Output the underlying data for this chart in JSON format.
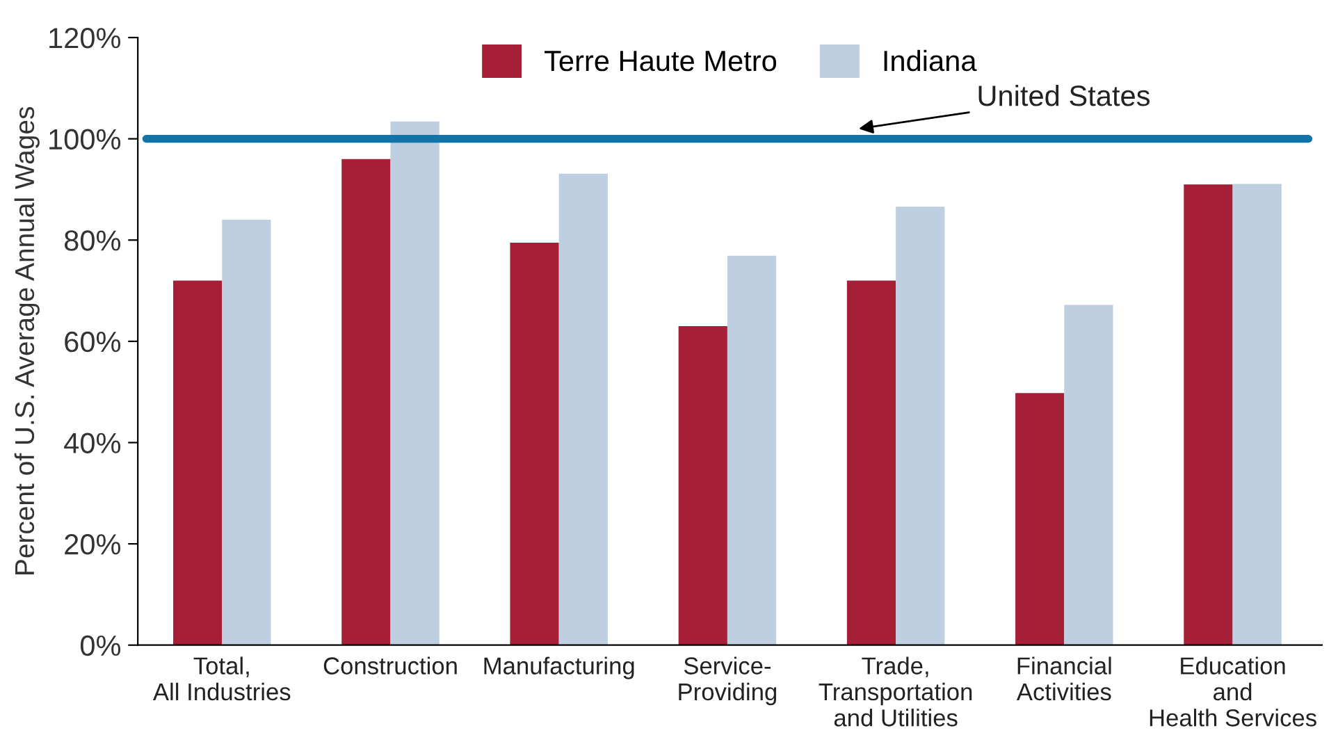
{
  "chart_data": {
    "type": "bar",
    "ylabel": "Percent of U.S. Average Annual Wages",
    "categories": [
      "Total,\nAll Industries",
      "Construction",
      "Manufacturing",
      "Service-\nProviding",
      "Trade,\nTransportation\nand Utilities",
      "Financial\nActivities",
      "Education\nand\nHealth Services"
    ],
    "series": [
      {
        "name": "Terre Haute Metro",
        "color": "#a51f36",
        "values": [
          72.0,
          96.0,
          79.5,
          63.0,
          72.0,
          49.8,
          91.0
        ]
      },
      {
        "name": "Indiana",
        "color": "#bdcfe1",
        "values": [
          84.0,
          103.4,
          93.1,
          76.9,
          86.6,
          67.2,
          91.1
        ]
      }
    ],
    "ylim": [
      0,
      120
    ],
    "yticks": [
      {
        "value": 0,
        "label": "0%"
      },
      {
        "value": 20,
        "label": "20%"
      },
      {
        "value": 40,
        "label": "40%"
      },
      {
        "value": 60,
        "label": "60%"
      },
      {
        "value": 80,
        "label": "80%"
      },
      {
        "value": 100,
        "label": "100%"
      },
      {
        "value": 120,
        "label": "120%"
      }
    ],
    "ref_lines": [
      {
        "axis": "y",
        "value": 100,
        "label": "United States",
        "color": "#1173a8"
      }
    ],
    "legend": "top",
    "grid": false
  }
}
